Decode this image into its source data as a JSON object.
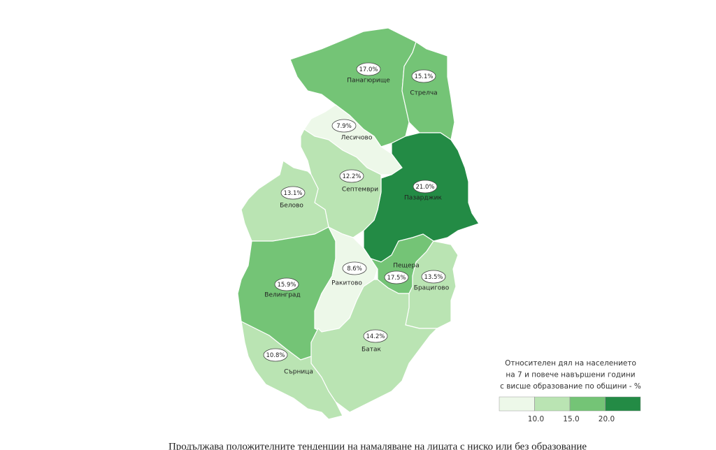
{
  "chart_data": {
    "type": "choropleth",
    "categories": [
      "Панагюрище",
      "Стрелча",
      "Лесичово",
      "Пазарджик",
      "Септември",
      "Белово",
      "Велинград",
      "Ракитово",
      "Пещера",
      "Брацигово",
      "Батак",
      "Сърница"
    ],
    "values": [
      17.0,
      15.1,
      7.9,
      21.0,
      12.2,
      13.1,
      15.9,
      8.6,
      17.5,
      13.5,
      14.2,
      10.8
    ],
    "value_labels": [
      "17.0%",
      "15.1%",
      "7.9%",
      "21.0%",
      "12.2%",
      "13.1%",
      "15.9%",
      "8.6%",
      "17.5%",
      "13.5%",
      "14.2%",
      "10.8%"
    ],
    "legend": {
      "title": [
        "Относителен дял на населението",
        "на 7 и повече навършени години",
        "с висше образование по общини - %"
      ],
      "ticks": [
        {
          "value": 10,
          "label": "10.0"
        },
        {
          "value": 15,
          "label": "15.0"
        },
        {
          "value": 20,
          "label": "20.0"
        }
      ],
      "colors": [
        "#edf8e9",
        "#bae4b3",
        "#74c476",
        "#238b45"
      ]
    }
  },
  "caption": "Продължава положителните тенденции на намаляване на лицата с ниско или без образование"
}
